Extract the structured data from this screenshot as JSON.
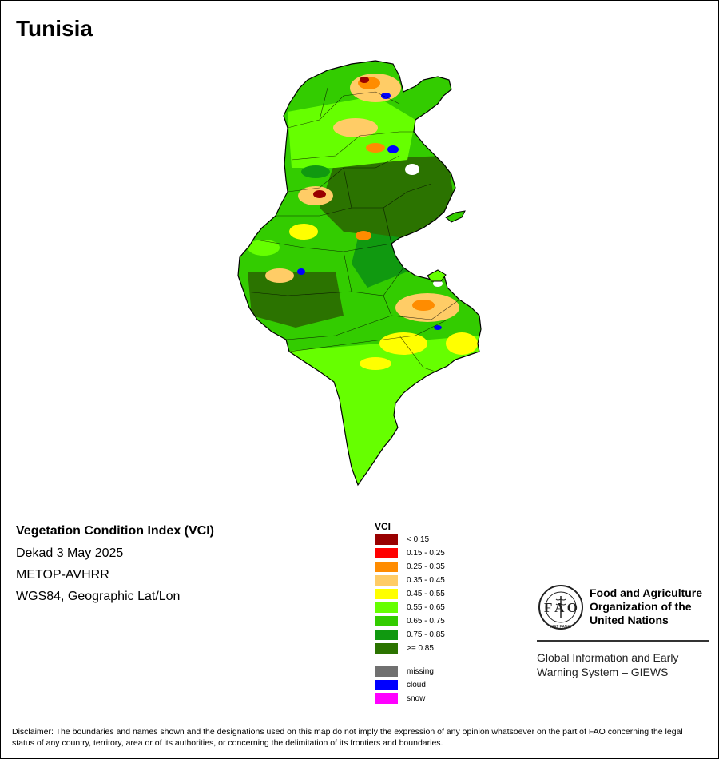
{
  "map": {
    "title": "Tunisia",
    "info": {
      "heading": "Vegetation Condition Index (VCI)",
      "period": "Dekad 3 May 2025",
      "sensor": "METOP-AVHRR",
      "projection": "WGS84, Geographic Lat/Lon"
    }
  },
  "legend": {
    "title": "VCI",
    "classes": [
      {
        "label": "< 0.15",
        "color": "#990000"
      },
      {
        "label": "0.15 - 0.25",
        "color": "#ff0000"
      },
      {
        "label": "0.25 - 0.35",
        "color": "#ff8c00"
      },
      {
        "label": "0.35 - 0.45",
        "color": "#ffcc66"
      },
      {
        "label": "0.45 - 0.55",
        "color": "#ffff00"
      },
      {
        "label": "0.55 - 0.65",
        "color": "#66ff00"
      },
      {
        "label": "0.65 - 0.75",
        "color": "#33cc00"
      },
      {
        "label": "0.75 - 0.85",
        "color": "#109910"
      },
      {
        "label": ">= 0.85",
        "color": "#2b7300"
      }
    ],
    "special": [
      {
        "label": "missing",
        "color": "#707070"
      },
      {
        "label": "cloud",
        "color": "#0000ff"
      },
      {
        "label": "snow",
        "color": "#ff00ff"
      }
    ]
  },
  "organization": {
    "logo_letters": "F A O",
    "logo_motto": "FIAT PANIS",
    "name_line1": "Food and Agriculture",
    "name_line2": "Organization of the",
    "name_line3": "United Nations",
    "system_line1": "Global Information and Early",
    "system_line2": "Warning System – GIEWS"
  },
  "disclaimer": "Disclaimer: The boundaries and names shown and the designations used on this map do not imply the expression of any opinion whatsoever on the part of FAO concerning the legal status of any country, territory, area or of its authorities, or concerning the delimitation of its frontiers and boundaries."
}
